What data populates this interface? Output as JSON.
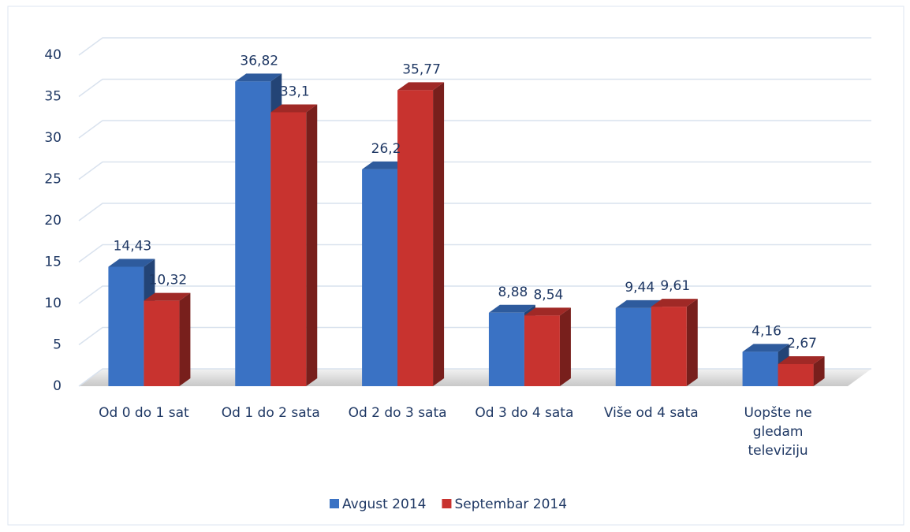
{
  "chart_data": {
    "type": "bar",
    "categories": [
      "Od 0 do 1 sat",
      "Od 1 do 2 sata",
      "Od 2 do 3 sata",
      "Od 3 do 4 sata",
      "Više od 4 sata",
      "Uopšte ne gledam televiziju"
    ],
    "series": [
      {
        "name": "Avgust 2014",
        "color": "#3a72c4",
        "values": [
          14.43,
          36.82,
          26.2,
          8.88,
          9.44,
          4.16
        ],
        "value_labels": [
          "14,43",
          "36,82",
          "26,2",
          "8,88",
          "9,44",
          "4,16"
        ]
      },
      {
        "name": "Septembar 2014",
        "color": "#c8332f",
        "values": [
          10.32,
          33.1,
          35.77,
          8.54,
          9.61,
          2.67
        ],
        "value_labels": [
          "10,32",
          "33,1",
          "35,77",
          "8,54",
          "9,61",
          "2,67"
        ]
      }
    ],
    "ylim": [
      0,
      40
    ],
    "yticks": [
      0,
      5,
      10,
      15,
      20,
      25,
      30,
      35,
      40
    ],
    "grid": true,
    "legend": "bottom"
  }
}
